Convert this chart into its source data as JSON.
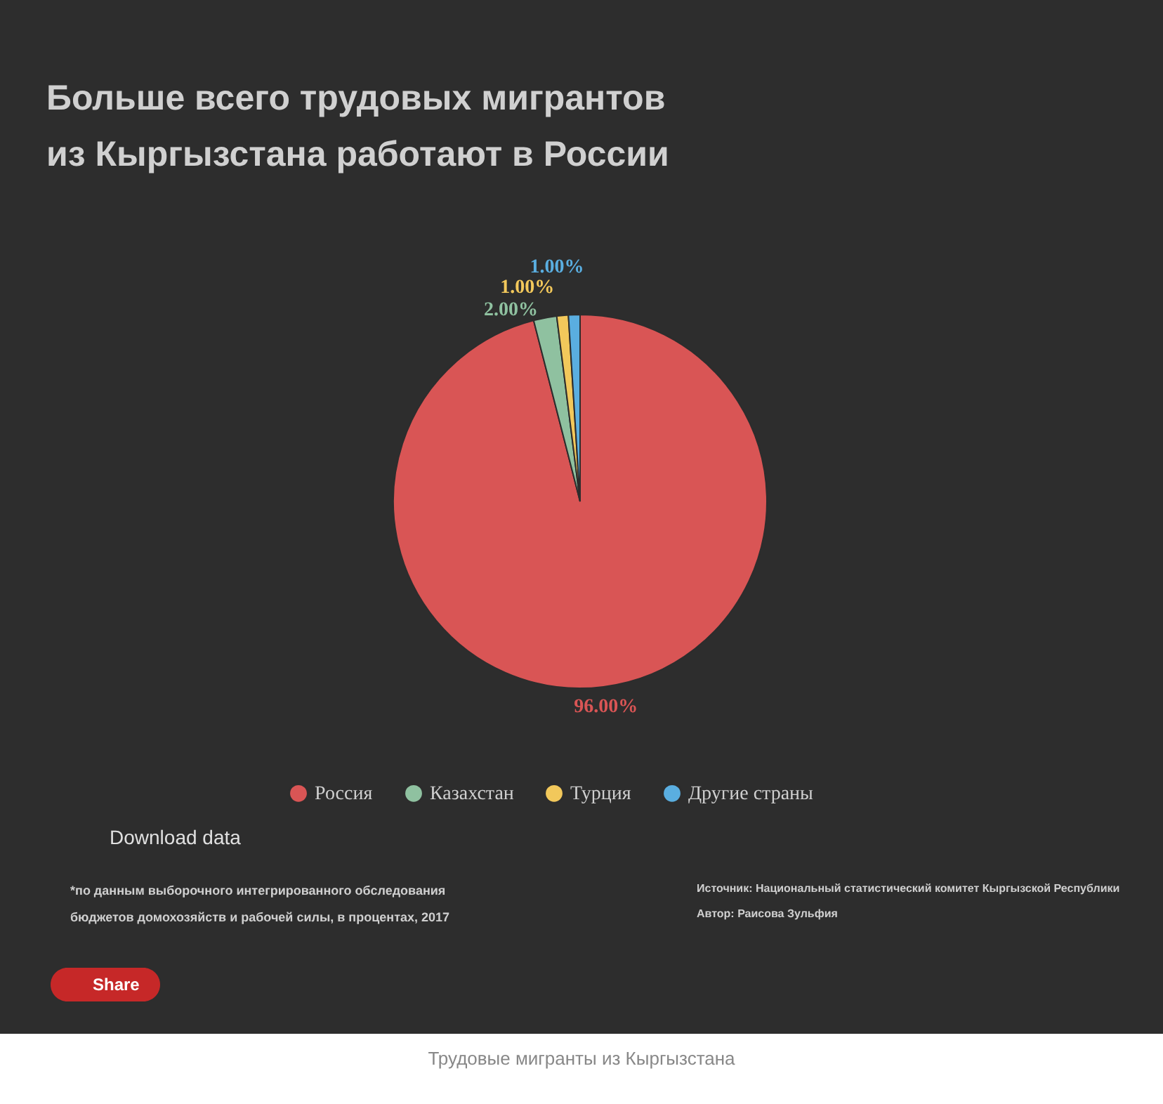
{
  "chart_data": {
    "type": "pie",
    "title": "Больше всего трудовых мигрантов из Кыргызстана работают в России",
    "categories": [
      "Россия",
      "Казахстан",
      "Турция",
      "Другие страны"
    ],
    "values": [
      96,
      2,
      1,
      1
    ],
    "value_labels": [
      "96.00%",
      "2.00%",
      "1.00%",
      "1.00%"
    ],
    "colors": [
      "#d95555",
      "#8fc1a0",
      "#f2c85b",
      "#5aaee0"
    ],
    "legend": "bottom",
    "annotations": [
      "Download data",
      "*по данным выборочного интегрированного обследования бюджетов домохозяйств и рабочей силы, в процентах, 2017",
      "Источник: Национальный статистический комитет Кыргызской Республики",
      "Автор: Раисова Зульфия",
      "Share",
      "Трудовые мигранты из Кыргызстана"
    ]
  }
}
